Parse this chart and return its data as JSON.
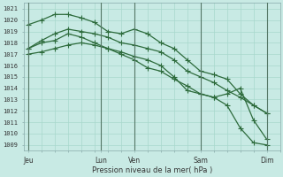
{
  "xlabel": "Pression niveau de la mer( hPa )",
  "background_color": "#c8eae4",
  "grid_color": "#a8d8cc",
  "line_color": "#2d6b3c",
  "ylim": [
    1008.5,
    1021.5
  ],
  "yticks": [
    1009,
    1010,
    1011,
    1012,
    1013,
    1014,
    1015,
    1016,
    1017,
    1018,
    1019,
    1020,
    1021
  ],
  "day_labels": [
    "Jeu",
    "Lun",
    "Ven",
    "Sam",
    "Dim"
  ],
  "day_positions": [
    0.0,
    5.5,
    8.0,
    13.0,
    18.0
  ],
  "xlim": [
    -0.3,
    19.0
  ],
  "series1_x": [
    0,
    1,
    2,
    3,
    4,
    5,
    6,
    7,
    8,
    9,
    10,
    11,
    12,
    13,
    14,
    15,
    16,
    17,
    18
  ],
  "series1_y": [
    1019.6,
    1020.0,
    1020.5,
    1020.5,
    1020.2,
    1019.8,
    1019.0,
    1018.8,
    1019.2,
    1018.8,
    1018.0,
    1017.5,
    1016.5,
    1015.5,
    1015.2,
    1014.8,
    1013.5,
    1012.5,
    1011.8
  ],
  "series2_x": [
    0,
    1,
    2,
    3,
    4,
    5,
    6,
    7,
    8,
    9,
    10,
    11,
    12,
    13,
    14,
    15,
    16,
    17,
    18
  ],
  "series2_y": [
    1017.5,
    1018.2,
    1018.8,
    1019.2,
    1019.0,
    1018.8,
    1018.5,
    1018.0,
    1017.8,
    1017.5,
    1017.2,
    1016.5,
    1015.5,
    1015.0,
    1014.5,
    1013.8,
    1013.2,
    1012.5,
    1011.8
  ],
  "series3_x": [
    0,
    1,
    2,
    3,
    4,
    5,
    6,
    7,
    8,
    9,
    10,
    11,
    12,
    13,
    14,
    15,
    16,
    17,
    18
  ],
  "series3_y": [
    1017.5,
    1018.0,
    1018.2,
    1018.8,
    1018.5,
    1018.0,
    1017.5,
    1017.0,
    1016.5,
    1015.8,
    1015.5,
    1014.8,
    1014.2,
    1013.5,
    1013.2,
    1013.5,
    1014.0,
    1011.2,
    1009.5
  ],
  "series4_x": [
    0,
    1,
    2,
    3,
    4,
    5,
    6,
    7,
    8,
    9,
    10,
    11,
    12,
    13,
    14,
    15,
    16,
    17,
    18
  ],
  "series4_y": [
    1017.0,
    1017.2,
    1017.5,
    1017.8,
    1018.0,
    1017.8,
    1017.5,
    1017.2,
    1016.8,
    1016.5,
    1016.0,
    1015.0,
    1013.8,
    1013.5,
    1013.2,
    1012.5,
    1010.5,
    1009.2,
    1009.0
  ]
}
